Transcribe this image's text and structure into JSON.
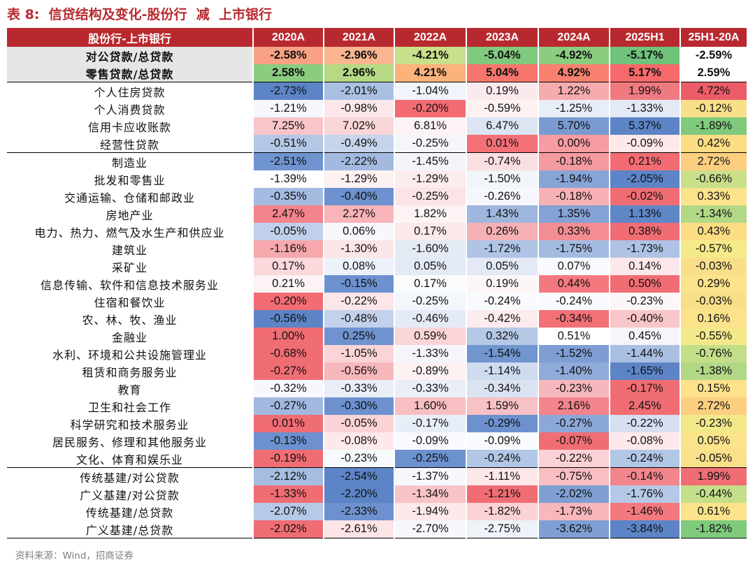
{
  "title": "表 8:  信贷结构及变化-股份行  减  上市银行",
  "source": "资料来源：Wind，招商证券",
  "table": {
    "headers": [
      "股份行-上市银行",
      "2020A",
      "2021A",
      "2022A",
      "2023A",
      "2024A",
      "2025H1",
      "25H1-20A"
    ],
    "rows": [
      {
        "label": "对公贷款/总贷款",
        "values": [
          "-2.58%",
          "-2.96%",
          "-4.21%",
          "-5.04%",
          "-4.92%",
          "-5.17%",
          "-2.59%"
        ],
        "colors": [
          "#f8a184",
          "#f9b58f",
          "#c9df8a",
          "#7fca7d",
          "#8bcd7f",
          "#6fc37b",
          "#ffffff"
        ]
      },
      {
        "label": "零售贷款/总贷款",
        "values": [
          "2.58%",
          "2.96%",
          "4.21%",
          "5.04%",
          "4.92%",
          "5.17%",
          "2.59%"
        ],
        "colors": [
          "#8bcd7f",
          "#b5d985",
          "#fcb37a",
          "#f6766d",
          "#f7806f",
          "#f8696b",
          "#ffffff"
        ]
      },
      {
        "label": "个人住房贷款",
        "values": [
          "-2.73%",
          "-2.01%",
          "-1.04%",
          "0.19%",
          "1.22%",
          "1.99%",
          "4.72%"
        ],
        "colors": [
          "#5c84c6",
          "#aac0e2",
          "#f1f4fa",
          "#fbeaed",
          "#f6abaf",
          "#f07a80",
          "#ec5c68"
        ]
      },
      {
        "label": "个人消费贷款",
        "values": [
          "-1.21%",
          "-0.98%",
          "-0.20%",
          "-0.59%",
          "-1.25%",
          "-1.33%",
          "-0.12%"
        ],
        "colors": [
          "#f5f7fc",
          "#fce8ea",
          "#f36c73",
          "#fdf1f2",
          "#e8eef7",
          "#e3e9f5",
          "#f8e08a"
        ]
      },
      {
        "label": "信用卡应收账款",
        "values": [
          "7.25%",
          "7.02%",
          "6.81%",
          "6.47%",
          "5.70%",
          "5.37%",
          "-1.89%"
        ],
        "colors": [
          "#f9c5c9",
          "#fad6d9",
          "#fdf3f4",
          "#dde5f3",
          "#7a9bd2",
          "#5c84c6",
          "#7fca7d"
        ]
      },
      {
        "label": "经营性贷款",
        "values": [
          "-0.51%",
          "-0.49%",
          "-0.25%",
          "0.01%",
          "0.00%",
          "-0.09%",
          "0.42%"
        ],
        "colors": [
          "#b4c8e6",
          "#c6d5ec",
          "#f4f6fb",
          "#f47077",
          "#f79ca1",
          "#fde8ea",
          "#fcdc84"
        ]
      },
      {
        "label": "制造业",
        "values": [
          "-2.51%",
          "-2.22%",
          "-1.45%",
          "-0.74%",
          "-0.18%",
          "0.21%",
          "2.72%"
        ],
        "colors": [
          "#7094cf",
          "#a3bae0",
          "#f3f5fb",
          "#fadfe2",
          "#f49ba0",
          "#f36c73",
          "#fccf80"
        ]
      },
      {
        "label": "批发和零售业",
        "values": [
          "-1.39%",
          "-1.29%",
          "-1.29%",
          "-1.50%",
          "-1.94%",
          "-2.05%",
          "-0.66%"
        ],
        "colors": [
          "#ffffff",
          "#fdf1f2",
          "#fcecee",
          "#f2f5fa",
          "#87a4d6",
          "#5c84c6",
          "#c9df8a"
        ]
      },
      {
        "label": "交通运输、仓储和邮政业",
        "values": [
          "-0.35%",
          "-0.40%",
          "-0.25%",
          "-0.26%",
          "-0.18%",
          "-0.02%",
          "0.33%"
        ],
        "colors": [
          "#a4bbe1",
          "#6c91ce",
          "#fbe4e6",
          "#f5f7fc",
          "#f7b1b5",
          "#f06d74",
          "#fbe38b"
        ]
      },
      {
        "label": "房地产业",
        "values": [
          "2.47%",
          "2.27%",
          "1.82%",
          "1.43%",
          "1.35%",
          "1.13%",
          "-1.34%"
        ],
        "colors": [
          "#f4848b",
          "#f8b4b8",
          "#fdf3f4",
          "#9fb7de",
          "#84a2d5",
          "#5f87c8",
          "#b2d885"
        ]
      },
      {
        "label": "电力、热力、燃气及水生产和供应业",
        "values": [
          "-0.05%",
          "0.06%",
          "0.17%",
          "0.26%",
          "0.33%",
          "0.38%",
          "0.43%"
        ],
        "colors": [
          "#c0d0ea",
          "#f6f8fc",
          "#fbe9eb",
          "#f6b1b5",
          "#f48d93",
          "#f06d74",
          "#fcdc84"
        ]
      },
      {
        "label": "建筑业",
        "values": [
          "-1.16%",
          "-1.30%",
          "-1.60%",
          "-1.72%",
          "-1.75%",
          "-1.73%",
          "-0.57%"
        ],
        "colors": [
          "#f6a8ad",
          "#fce5e7",
          "#e4ebf5",
          "#b0c4e5",
          "#a4bbe1",
          "#adc2e4",
          "#f5e98a"
        ]
      },
      {
        "label": "采矿业",
        "values": [
          "0.17%",
          "0.08%",
          "0.05%",
          "0.05%",
          "0.07%",
          "0.14%",
          "-0.03%"
        ],
        "colors": [
          "#fad8db",
          "#edf1f9",
          "#e3e9f5",
          "#e3e9f5",
          "#f8fafd",
          "#fce8ea",
          "#f9df8a"
        ]
      },
      {
        "label": "信息传输、软件和信息技术服务业",
        "values": [
          "0.21%",
          "-0.15%",
          "0.17%",
          "0.19%",
          "0.44%",
          "0.50%",
          "0.29%"
        ],
        "colors": [
          "#fdf3f4",
          "#6c91ce",
          "#fafbfd",
          "#fdf6f7",
          "#f4797f",
          "#f06d74",
          "#fbe38b"
        ]
      },
      {
        "label": "住宿和餐饮业",
        "values": [
          "-0.20%",
          "-0.22%",
          "-0.25%",
          "-0.24%",
          "-0.24%",
          "-0.23%",
          "-0.03%"
        ],
        "colors": [
          "#f36c73",
          "#fce6e8",
          "#f3f6fb",
          "#f9fafd",
          "#f9fafd",
          "#fdf6f7",
          "#f9df8a"
        ]
      },
      {
        "label": "农、林、牧、渔业",
        "values": [
          "-0.56%",
          "-0.48%",
          "-0.46%",
          "-0.42%",
          "-0.34%",
          "-0.40%",
          "0.16%"
        ],
        "colors": [
          "#5c84c6",
          "#c3d2eb",
          "#e5ebf6",
          "#fcecee",
          "#f47077",
          "#f9c7ca",
          "#fce28a"
        ]
      },
      {
        "label": "金融业",
        "values": [
          "1.00%",
          "0.25%",
          "0.59%",
          "0.32%",
          "0.51%",
          "0.45%",
          "-0.55%"
        ],
        "colors": [
          "#f06d74",
          "#6f93cf",
          "#fad5d8",
          "#b5c8e6",
          "#ffffff",
          "#f4f6fb",
          "#f3e98a"
        ]
      },
      {
        "label": "水利、环境和公共设施管理业",
        "values": [
          "-0.68%",
          "-1.05%",
          "-1.33%",
          "-1.54%",
          "-1.52%",
          "-1.44%",
          "-0.76%"
        ],
        "colors": [
          "#f06d74",
          "#fad4d7",
          "#f4f6fb",
          "#7095cf",
          "#7d9dd3",
          "#a9bfe2",
          "#c3de89"
        ]
      },
      {
        "label": "租赁和商务服务业",
        "values": [
          "-0.27%",
          "-0.56%",
          "-0.89%",
          "-1.14%",
          "-1.40%",
          "-1.65%",
          "-1.38%"
        ],
        "colors": [
          "#f06d74",
          "#f8b7bb",
          "#fdf1f2",
          "#cfdbef",
          "#90abd9",
          "#5c84c6",
          "#b2d885"
        ]
      },
      {
        "label": "教育",
        "values": [
          "-0.32%",
          "-0.33%",
          "-0.33%",
          "-0.34%",
          "-0.23%",
          "-0.17%",
          "0.15%"
        ],
        "colors": [
          "#f6f8fc",
          "#e9eef7",
          "#e9eef7",
          "#dbe3f2",
          "#f6b8bc",
          "#f06d74",
          "#fce28a"
        ]
      },
      {
        "label": "卫生和社会工作",
        "values": [
          "-0.27%",
          "-0.30%",
          "1.60%",
          "1.59%",
          "2.16%",
          "2.45%",
          "2.72%"
        ],
        "colors": [
          "#a1b9e0",
          "#6c91ce",
          "#f8bfc3",
          "#f8c1c5",
          "#f4848b",
          "#f06d74",
          "#fccf80"
        ]
      },
      {
        "label": "科学研究和技术服务业",
        "values": [
          "0.01%",
          "-0.05%",
          "-0.17%",
          "-0.29%",
          "-0.27%",
          "-0.22%",
          "-0.23%"
        ],
        "colors": [
          "#f06d74",
          "#fad3d6",
          "#e8eef7",
          "#6c91ce",
          "#8ca8d8",
          "#d5dff1",
          "#f1e88a"
        ]
      },
      {
        "label": "居民服务、修理和其他服务业",
        "values": [
          "-0.13%",
          "-0.08%",
          "-0.09%",
          "-0.09%",
          "-0.07%",
          "-0.08%",
          "0.05%"
        ],
        "colors": [
          "#6c91ce",
          "#fde9eb",
          "#f9fafd",
          "#f9fafd",
          "#f06d74",
          "#fde9eb",
          "#fbe38b"
        ]
      },
      {
        "label": "文化、体育和娱乐业",
        "values": [
          "-0.19%",
          "-0.23%",
          "-0.25%",
          "-0.24%",
          "-0.22%",
          "-0.24%",
          "-0.05%"
        ],
        "colors": [
          "#f06d74",
          "#f7fafd",
          "#6c91ce",
          "#b2c6e6",
          "#fad1d4",
          "#b2c6e6",
          "#f9e08a"
        ]
      },
      {
        "label": "传统基建/对公贷款",
        "values": [
          "-2.12%",
          "-2.54%",
          "-1.37%",
          "-1.11%",
          "-0.75%",
          "-0.14%",
          "1.99%"
        ],
        "colors": [
          "#a6bde1",
          "#5c84c6",
          "#f6f8fc",
          "#fce7e9",
          "#f8bec2",
          "#f2868c",
          "#f06d74"
        ]
      },
      {
        "label": "广义基建/对公贷款",
        "values": [
          "-1.33%",
          "-2.20%",
          "-1.34%",
          "-1.21%",
          "-2.02%",
          "-1.76%",
          "-0.44%"
        ],
        "colors": [
          "#f06d74",
          "#5c84c6",
          "#f9c4c7",
          "#f06d74",
          "#7f9fd4",
          "#b5c8e6",
          "#c4df89"
        ]
      },
      {
        "label": "传统基建/总贷款",
        "values": [
          "-2.07%",
          "-2.33%",
          "-1.94%",
          "-1.82%",
          "-1.73%",
          "-1.46%",
          "0.61%"
        ],
        "colors": [
          "#b6c9e7",
          "#6c91ce",
          "#fde8ea",
          "#fad2d5",
          "#f8b7bb",
          "#f4797f",
          "#fbe38b"
        ]
      },
      {
        "label": "广义基建/总贷款",
        "values": [
          "-2.02%",
          "-2.61%",
          "-2.70%",
          "-2.75%",
          "-3.62%",
          "-3.84%",
          "-1.82%"
        ],
        "colors": [
          "#f06d74",
          "#fde4e6",
          "#f6f8fc",
          "#eef2f9",
          "#7f9fd4",
          "#5c84c6",
          "#7fca7d"
        ]
      }
    ]
  }
}
